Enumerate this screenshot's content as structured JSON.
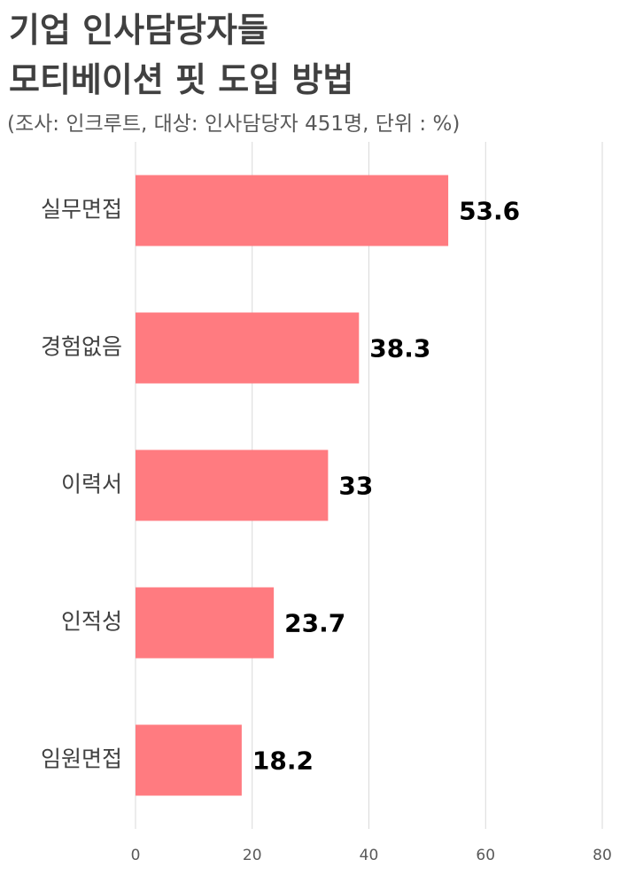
{
  "chart_data": {
    "type": "bar",
    "orientation": "horizontal",
    "title": "기업 인사담당자들\n모티베이션 핏 도입 방법",
    "subtitle": "(조사: 인크루트, 대상: 인사담당자 451명, 단위 : %)",
    "categories": [
      "실무면접",
      "경험없음",
      "이력서",
      "인적성",
      "임원면접"
    ],
    "values": [
      53.6,
      38.3,
      33,
      23.7,
      18.2
    ],
    "color": "#ff7b80",
    "xlim": [
      0,
      80
    ],
    "xticks": [
      0,
      20,
      40,
      60,
      80
    ],
    "grid": true
  }
}
